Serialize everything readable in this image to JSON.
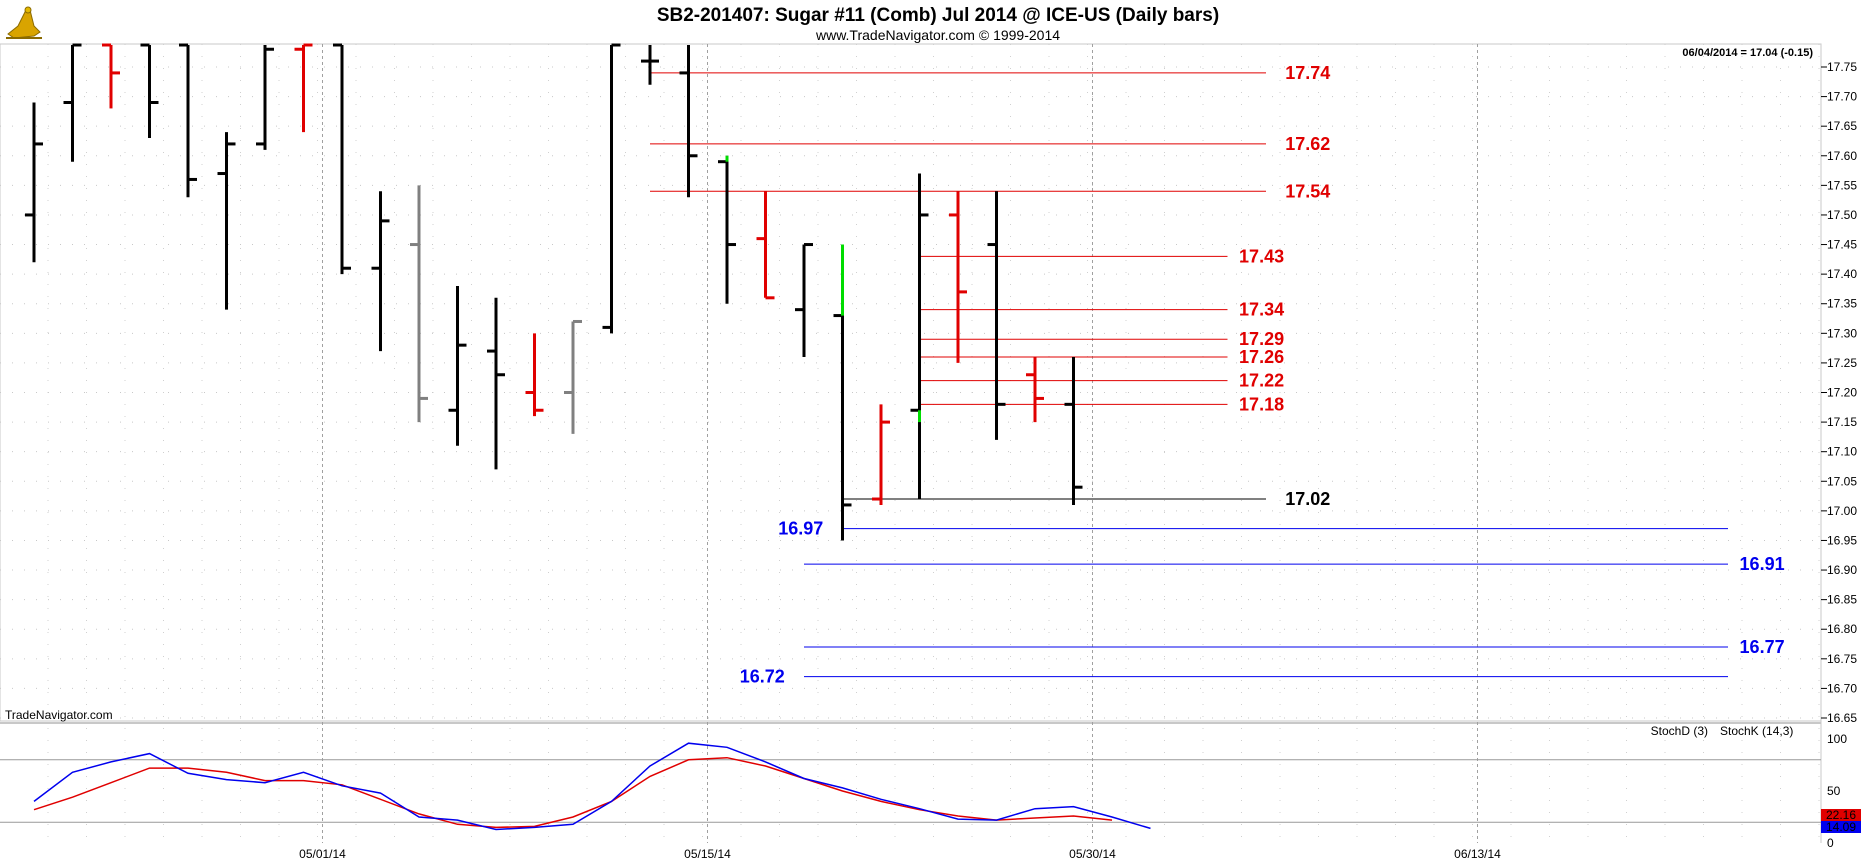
{
  "chart_data": {
    "type": "ohlc",
    "title": "SB2-201407:  Sugar #11 (Comb) Jul 2014 @ ICE-US  (Daily bars)",
    "subtitle": "www.TradeNavigator.com © 1999-2014",
    "watermark": "TradeNavigator.com",
    "last_value_label": "06/04/2014 = 17.04 (-0.15)",
    "price_axis": {
      "min": 16.65,
      "max": 17.77,
      "ticks": [
        "17.75",
        "17.70",
        "17.65",
        "17.60",
        "17.55",
        "17.50",
        "17.45",
        "17.40",
        "17.35",
        "17.30",
        "17.25",
        "17.20",
        "17.15",
        "17.10",
        "17.05",
        "17.00",
        "16.95",
        "16.90",
        "16.85",
        "16.80",
        "16.75",
        "16.70",
        "16.65"
      ]
    },
    "x_axis": {
      "labels": [
        {
          "text": "05/01/14",
          "bar": 7
        },
        {
          "text": "05/15/14",
          "bar": 17
        },
        {
          "text": "05/30/14",
          "bar": 27
        },
        {
          "text": "06/13/14",
          "bar": 37
        }
      ],
      "gridlines_at_bars": [
        7,
        17,
        27,
        37
      ]
    },
    "bars": [
      {
        "o": 17.5,
        "h": 17.69,
        "l": 17.42,
        "c": 17.62,
        "color": "#000000"
      },
      {
        "o": 17.69,
        "h": 17.8,
        "l": 17.59,
        "c": 17.8,
        "color": "#000000"
      },
      {
        "o": 17.8,
        "h": 17.8,
        "l": 17.68,
        "c": 17.74,
        "color": "#e00000"
      },
      {
        "o": 17.8,
        "h": 17.8,
        "l": 17.63,
        "c": 17.69,
        "color": "#000000"
      },
      {
        "o": 17.8,
        "h": 17.8,
        "l": 17.53,
        "c": 17.56,
        "color": "#000000"
      },
      {
        "o": 17.57,
        "h": 17.64,
        "l": 17.34,
        "c": 17.62,
        "color": "#000000"
      },
      {
        "o": 17.62,
        "h": 17.8,
        "l": 17.61,
        "c": 17.78,
        "color": "#000000"
      },
      {
        "o": 17.78,
        "h": 17.8,
        "l": 17.64,
        "c": 17.8,
        "color": "#e00000"
      },
      {
        "o": 17.8,
        "h": 17.8,
        "l": 17.4,
        "c": 17.41,
        "color": "#000000"
      },
      {
        "o": 17.41,
        "h": 17.54,
        "l": 17.27,
        "c": 17.49,
        "color": "#000000"
      },
      {
        "o": 17.45,
        "h": 17.55,
        "l": 17.15,
        "c": 17.19,
        "color": "#808080"
      },
      {
        "o": 17.17,
        "h": 17.38,
        "l": 17.11,
        "c": 17.28,
        "color": "#000000"
      },
      {
        "o": 17.27,
        "h": 17.36,
        "l": 17.07,
        "c": 17.23,
        "color": "#000000"
      },
      {
        "o": 17.2,
        "h": 17.3,
        "l": 17.16,
        "c": 17.17,
        "color": "#e00000"
      },
      {
        "o": 17.2,
        "h": 17.32,
        "l": 17.13,
        "c": 17.32,
        "color": "#808080"
      },
      {
        "o": 17.31,
        "h": 17.8,
        "l": 17.3,
        "c": 17.8,
        "color": "#000000"
      },
      {
        "o": 17.76,
        "h": 17.8,
        "l": 17.72,
        "c": 17.76,
        "color": "#000000"
      },
      {
        "o": 17.74,
        "h": 17.8,
        "l": 17.53,
        "c": 17.6,
        "color": "#000000"
      },
      {
        "o": 17.59,
        "h": 17.6,
        "l": 17.35,
        "c": 17.45,
        "color": "#000000"
      },
      {
        "o": 17.46,
        "h": 17.54,
        "l": 17.36,
        "c": 17.36,
        "color": "#e00000"
      },
      {
        "o": 17.34,
        "h": 17.45,
        "l": 17.26,
        "c": 17.45,
        "color": "#000000"
      },
      {
        "o": 17.33,
        "h": 17.45,
        "l": 16.95,
        "c": 17.01,
        "color": "#000000"
      },
      {
        "o": 17.02,
        "h": 17.18,
        "l": 17.01,
        "c": 17.15,
        "color": "#e00000"
      },
      {
        "o": 17.17,
        "h": 17.57,
        "l": 17.02,
        "c": 17.5,
        "color": "#000000"
      },
      {
        "o": 17.5,
        "h": 17.54,
        "l": 17.25,
        "c": 17.37,
        "color": "#e00000"
      },
      {
        "o": 17.45,
        "h": 17.54,
        "l": 17.12,
        "c": 17.18,
        "color": "#000000"
      },
      {
        "o": 17.23,
        "h": 17.26,
        "l": 17.15,
        "c": 17.19,
        "color": "#e00000"
      },
      {
        "o": 17.18,
        "h": 17.26,
        "l": 17.01,
        "c": 17.04,
        "color": "#000000"
      }
    ],
    "bar_segments": [
      {
        "bar": 21,
        "from": 17.33,
        "to": 17.45,
        "color": "#00dd00"
      },
      {
        "bar": 23,
        "from": 17.15,
        "to": 17.17,
        "color": "#00dd00"
      },
      {
        "bar": 18,
        "from": 17.59,
        "to": 17.6,
        "color": "#00dd00"
      }
    ],
    "levels": [
      {
        "label": "17.74",
        "value": 17.74,
        "from_bar": 16,
        "to_bar": 32,
        "label_bar": 32.5,
        "color": "#e00000",
        "label_side": "right"
      },
      {
        "label": "17.62",
        "value": 17.62,
        "from_bar": 16,
        "to_bar": 32,
        "label_bar": 32.5,
        "color": "#e00000",
        "label_side": "right"
      },
      {
        "label": "17.54",
        "value": 17.54,
        "from_bar": 16,
        "to_bar": 32,
        "label_bar": 32.5,
        "color": "#e00000",
        "label_side": "right"
      },
      {
        "label": "17.43",
        "value": 17.43,
        "from_bar": 23,
        "to_bar": 31,
        "label_bar": 31.3,
        "color": "#e00000",
        "label_side": "right"
      },
      {
        "label": "17.34",
        "value": 17.34,
        "from_bar": 23,
        "to_bar": 31,
        "label_bar": 31.3,
        "color": "#e00000",
        "label_side": "right"
      },
      {
        "label": "17.29",
        "value": 17.29,
        "from_bar": 23,
        "to_bar": 31,
        "label_bar": 31.3,
        "color": "#e00000",
        "label_side": "right"
      },
      {
        "label": "17.26",
        "value": 17.26,
        "from_bar": 23,
        "to_bar": 31,
        "label_bar": 31.3,
        "color": "#e00000",
        "label_side": "right"
      },
      {
        "label": "17.22",
        "value": 17.22,
        "from_bar": 23,
        "to_bar": 31,
        "label_bar": 31.3,
        "color": "#e00000",
        "label_side": "right"
      },
      {
        "label": "17.18",
        "value": 17.18,
        "from_bar": 23,
        "to_bar": 31,
        "label_bar": 31.3,
        "color": "#e00000",
        "label_side": "right"
      },
      {
        "label": "17.02",
        "value": 17.02,
        "from_bar": 21,
        "to_bar": 32,
        "label_bar": 32.5,
        "color": "#000000",
        "label_side": "right"
      },
      {
        "label": "16.97",
        "value": 16.97,
        "from_bar": 21,
        "to_bar": 44,
        "label_bar": 20.5,
        "color": "#0000ee",
        "label_side": "left"
      },
      {
        "label": "16.91",
        "value": 16.91,
        "from_bar": 20,
        "to_bar": 44,
        "label_bar": 44.3,
        "color": "#0000ee",
        "label_side": "right"
      },
      {
        "label": "16.77",
        "value": 16.77,
        "from_bar": 20,
        "to_bar": 44,
        "label_bar": 44.3,
        "color": "#0000ee",
        "label_side": "right"
      },
      {
        "label": "16.72",
        "value": 16.72,
        "from_bar": 20,
        "to_bar": 44,
        "label_bar": 19.5,
        "color": "#0000ee",
        "label_side": "left"
      }
    ],
    "stochastic": {
      "legend_d": "StochD (3)",
      "legend_k": "StochK (14,3)",
      "axis": {
        "min": 0,
        "max": 110,
        "ticks": [
          "100",
          "50",
          "0"
        ]
      },
      "reference_levels": [
        80,
        20
      ],
      "last_d_label": "22.16",
      "last_k_label": "14.09",
      "color_d": "#e00000",
      "color_k": "#0000ee",
      "stoch_d": [
        32,
        44,
        58,
        72,
        72,
        68,
        60,
        60,
        56,
        42,
        28,
        18,
        15,
        16,
        25,
        40,
        64,
        80,
        82,
        74,
        62,
        50,
        40,
        32,
        26,
        22,
        24,
        26,
        22
      ],
      "stoch_k": [
        40,
        68,
        78,
        86,
        67,
        61,
        58,
        68,
        55,
        48,
        25,
        22,
        13,
        15,
        18,
        40,
        74,
        96,
        92,
        78,
        62,
        53,
        42,
        33,
        23,
        22,
        33,
        35,
        25,
        14
      ]
    }
  }
}
